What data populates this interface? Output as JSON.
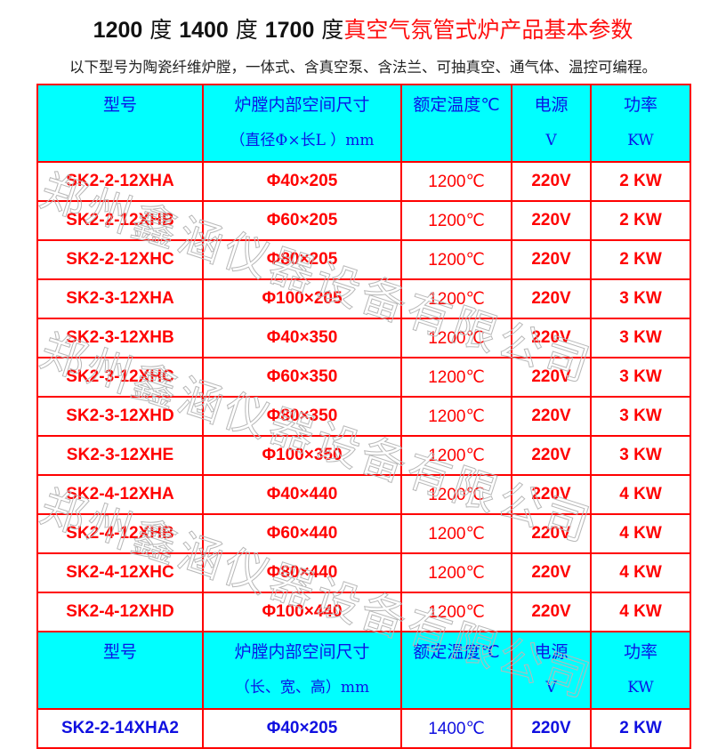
{
  "title": {
    "parts": [
      {
        "text": "1200",
        "style": "num"
      },
      {
        "text": " 度 ",
        "style": "du"
      },
      {
        "text": "1400",
        "style": "num"
      },
      {
        "text": " 度 ",
        "style": "du"
      },
      {
        "text": "1700",
        "style": "num"
      },
      {
        "text": " 度",
        "style": "du"
      },
      {
        "text": "真空气氛管式炉产品基本参数",
        "style": "red"
      }
    ]
  },
  "subtitle": "以下型号为陶瓷纤维炉膛，一体式、含真空泵、含法兰、可抽真空、通气体、温控可编程。",
  "watermark": "郑州鑫涵仪器设备有限公司",
  "colors": {
    "border": "#ff0000",
    "header_bg": "#00ffff",
    "header_text": "#0a14e6",
    "row_text": "#ff0000",
    "row_text_1400": "#1010e0"
  },
  "table1": {
    "headers": [
      {
        "l1": "型号",
        "l2": ""
      },
      {
        "l1": "炉膛内部空间尺寸",
        "l2": "（直径Φ×长L ）mm"
      },
      {
        "l1": "额定温度℃",
        "l2": ""
      },
      {
        "l1": "电源",
        "l2": "V"
      },
      {
        "l1": "功率",
        "l2": "KW"
      }
    ],
    "rows": [
      [
        "SK2-2-12XHA",
        "Φ40×205",
        "1200℃",
        "220V",
        "2 KW"
      ],
      [
        "SK2-2-12XHB",
        "Φ60×205",
        "1200℃",
        "220V",
        "2 KW"
      ],
      [
        "SK2-2-12XHC",
        "Φ80×205",
        "1200℃",
        "220V",
        "2 KW"
      ],
      [
        "SK2-3-12XHA",
        "Φ100×205",
        "1200℃",
        "220V",
        "3 KW"
      ],
      [
        "SK2-3-12XHB",
        "Φ40×350",
        "1200℃",
        "220V",
        "3 KW"
      ],
      [
        "SK2-3-12XHC",
        "Φ60×350",
        "1200℃",
        "220V",
        "3 KW"
      ],
      [
        "SK2-3-12XHD",
        "Φ80×350",
        "1200℃",
        "220V",
        "3 KW"
      ],
      [
        "SK2-3-12XHE",
        "Φ100×350",
        "1200℃",
        "220V",
        "3 KW"
      ],
      [
        "SK2-4-12XHA",
        "Φ40×440",
        "1200℃",
        "220V",
        "4 KW"
      ],
      [
        "SK2-4-12XHB",
        "Φ60×440",
        "1200℃",
        "220V",
        "4 KW"
      ],
      [
        "SK2-4-12XHC",
        "Φ80×440",
        "1200℃",
        "220V",
        "4 KW"
      ],
      [
        "SK2-4-12XHD",
        "Φ100×440",
        "1200℃",
        "220V",
        "4 KW"
      ]
    ]
  },
  "table2": {
    "headers": [
      {
        "l1": "型号",
        "l2": ""
      },
      {
        "l1": "炉膛内部空间尺寸",
        "l2": "（长、宽、高）mm"
      },
      {
        "l1": "额定温度℃",
        "l2": ""
      },
      {
        "l1": "电源",
        "l2": "V"
      },
      {
        "l1": "功率",
        "l2": "KW"
      }
    ],
    "rows": [
      [
        "SK2-2-14XHA2",
        "Φ40×205",
        "1400℃",
        "220V",
        "2 KW"
      ]
    ]
  }
}
